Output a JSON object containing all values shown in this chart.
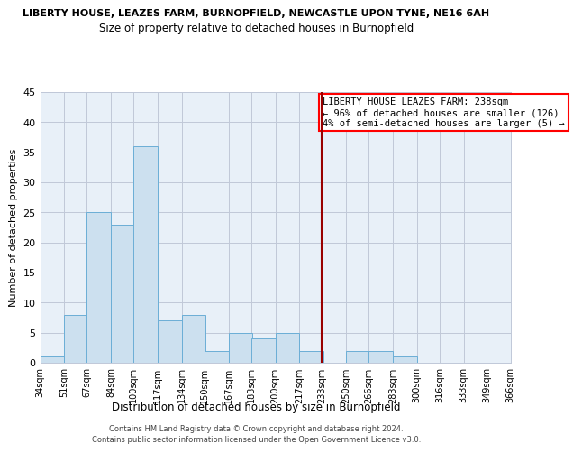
{
  "title_top": "LIBERTY HOUSE, LEAZES FARM, BURNOPFIELD, NEWCASTLE UPON TYNE, NE16 6AH",
  "title_sub": "Size of property relative to detached houses in Burnopfield",
  "xlabel": "Distribution of detached houses by size in Burnopfield",
  "ylabel": "Number of detached properties",
  "bin_edges": [
    34,
    51,
    67,
    84,
    100,
    117,
    134,
    150,
    167,
    183,
    200,
    217,
    233,
    250,
    266,
    283,
    300,
    316,
    333,
    349,
    366
  ],
  "bar_heights": [
    1,
    8,
    25,
    23,
    36,
    7,
    8,
    2,
    5,
    4,
    5,
    2,
    0,
    2,
    2,
    1,
    0,
    0,
    0,
    0
  ],
  "bar_color": "#cce0ef",
  "bar_edgecolor": "#6baed6",
  "vline_x": 233,
  "vline_color": "#990000",
  "ylim": [
    0,
    45
  ],
  "yticks": [
    0,
    5,
    10,
    15,
    20,
    25,
    30,
    35,
    40,
    45
  ],
  "tick_labels": [
    "34sqm",
    "51sqm",
    "67sqm",
    "84sqm",
    "100sqm",
    "117sqm",
    "134sqm",
    "150sqm",
    "167sqm",
    "183sqm",
    "200sqm",
    "217sqm",
    "233sqm",
    "250sqm",
    "266sqm",
    "283sqm",
    "300sqm",
    "316sqm",
    "333sqm",
    "349sqm",
    "366sqm"
  ],
  "annotation_title": "LIBERTY HOUSE LEAZES FARM: 238sqm",
  "annotation_line1": "← 96% of detached houses are smaller (126)",
  "annotation_line2": "4% of semi-detached houses are larger (5) →",
  "footer_line1": "Contains HM Land Registry data © Crown copyright and database right 2024.",
  "footer_line2": "Contains public sector information licensed under the Open Government Licence v3.0.",
  "axes_bg_color": "#e8f0f8",
  "grid_color": "#c0c8d8"
}
